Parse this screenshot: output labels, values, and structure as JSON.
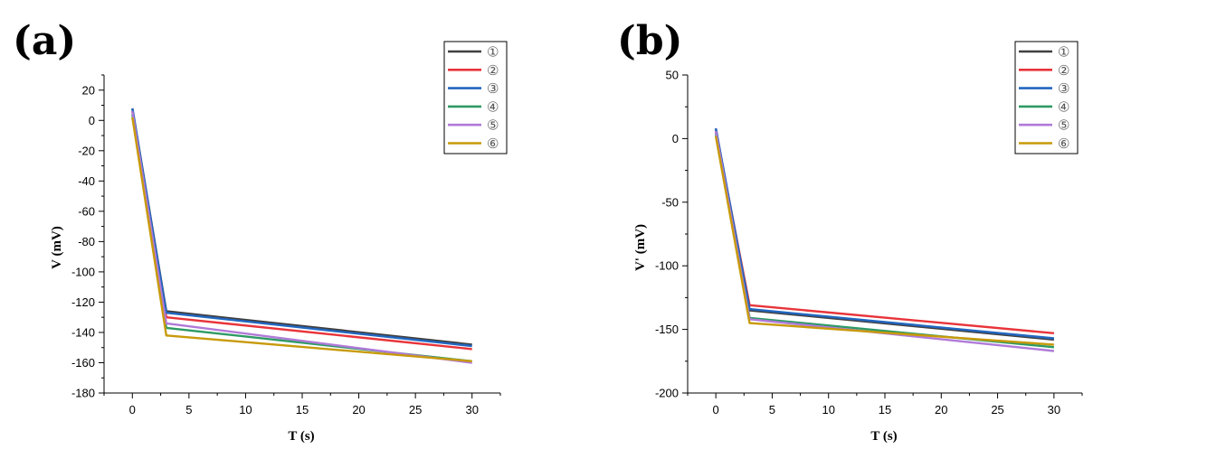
{
  "colors": {
    "s1": "#404040",
    "s2": "#e8343a",
    "s3": "#2266c0",
    "s4": "#2e9a64",
    "s5": "#b07ad8",
    "s6": "#c89a0a"
  },
  "chart_data": [
    {
      "type": "line",
      "panel_label": "(a)",
      "xlabel": "T (s)",
      "ylabel": "V (mV)",
      "xlim": [
        -2.5,
        32.5
      ],
      "ylim": [
        -180,
        30
      ],
      "xticks": [
        0,
        5,
        10,
        15,
        20,
        25,
        30
      ],
      "yticks": [
        20,
        0,
        -20,
        -40,
        -60,
        -80,
        -100,
        -120,
        -140,
        -160,
        -180
      ],
      "legend_position": "top-right",
      "grid": false,
      "series": [
        {
          "name": "①",
          "color_key": "s1",
          "x": [
            0,
            3,
            30
          ],
          "y": [
            8,
            -126,
            -148
          ]
        },
        {
          "name": "②",
          "color_key": "s2",
          "x": [
            0,
            3,
            30
          ],
          "y": [
            6,
            -130,
            -151
          ]
        },
        {
          "name": "③",
          "color_key": "s3",
          "x": [
            0,
            3,
            30
          ],
          "y": [
            8,
            -127,
            -149
          ]
        },
        {
          "name": "④",
          "color_key": "s4",
          "x": [
            0,
            3,
            30
          ],
          "y": [
            4,
            -137,
            -159
          ]
        },
        {
          "name": "⑤",
          "color_key": "s5",
          "x": [
            0,
            3,
            30
          ],
          "y": [
            6,
            -134,
            -160
          ]
        },
        {
          "name": "⑥",
          "color_key": "s6",
          "x": [
            0,
            3,
            30
          ],
          "y": [
            2,
            -142,
            -159
          ]
        }
      ]
    },
    {
      "type": "line",
      "panel_label": "(b)",
      "xlabel": "T (s)",
      "ylabel": "V' (mV)",
      "xlim": [
        -2.5,
        32.5
      ],
      "ylim": [
        -200,
        50
      ],
      "xticks": [
        0,
        5,
        10,
        15,
        20,
        25,
        30
      ],
      "yticks": [
        50,
        0,
        -50,
        -100,
        -150,
        -200
      ],
      "legend_position": "top-right",
      "grid": false,
      "series": [
        {
          "name": "①",
          "color_key": "s1",
          "x": [
            0,
            3,
            30
          ],
          "y": [
            8,
            -135,
            -158
          ]
        },
        {
          "name": "②",
          "color_key": "s2",
          "x": [
            0,
            3,
            30
          ],
          "y": [
            6,
            -131,
            -153
          ]
        },
        {
          "name": "③",
          "color_key": "s3",
          "x": [
            0,
            3,
            30
          ],
          "y": [
            8,
            -134,
            -157
          ]
        },
        {
          "name": "④",
          "color_key": "s4",
          "x": [
            0,
            3,
            30
          ],
          "y": [
            4,
            -141,
            -164
          ]
        },
        {
          "name": "⑤",
          "color_key": "s5",
          "x": [
            0,
            3,
            30
          ],
          "y": [
            6,
            -142,
            -167
          ]
        },
        {
          "name": "⑥",
          "color_key": "s6",
          "x": [
            0,
            3,
            30
          ],
          "y": [
            2,
            -145,
            -162
          ]
        }
      ]
    }
  ]
}
